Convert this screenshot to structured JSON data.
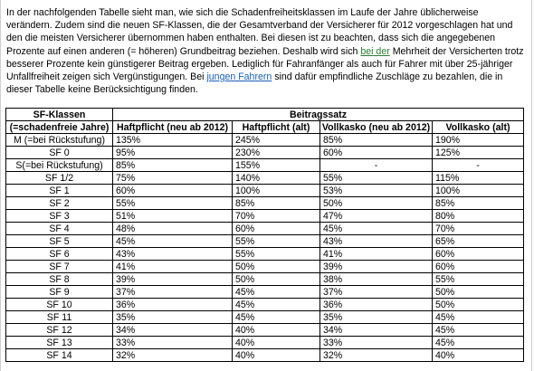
{
  "intro": {
    "part1": "In der nachfolgenden Tabelle sieht man, wie sich die Schadenfreiheitsklassen im Laufe der Jahre üblicherweise verändern. Zudem sind die neuen SF-Klassen, die der Gesamtverband der Versicherer für 2012 vorgeschlagen hat und den die meisten Versicherer übernommen haben enthalten. Bei diesen ist zu beachten, dass sich die angegebenen Prozente auf einen anderen (= höheren) Grundbeitrag beziehen. Deshalb wird sich ",
    "link_green": "bei der",
    "part2": " Mehrheit der Versicherten trotz besserer Prozente kein günstigerer Beitrag ergeben. Lediglich für Fahranfänger als auch für Fahrer mit über 25-jähriger Unfallfreiheit zeigen sich Vergünstigungen. Bei ",
    "link_blue": "jungen Fahrern",
    "part3": " sind dafür empfindliche Zuschläge zu bezahlen, die in dieser Tabelle keine Berücksichtigung finden."
  },
  "table": {
    "header_sf_line1": "SF-Klassen",
    "header_sf_line2": "(=schadenfreie Jahre)",
    "header_group": "Beitragssatz",
    "columns": [
      "Haftpflicht (neu ab 2012)",
      "Haftpflicht (alt)",
      "Vollkasko (neu ab 2012)",
      "Vollkasko (alt)"
    ],
    "rows": [
      {
        "cls": "M (=bei Rückstufung)",
        "v": [
          "135%",
          "245%",
          "85%",
          "190%"
        ]
      },
      {
        "cls": "SF 0",
        "v": [
          "95%",
          "230%",
          "60%",
          "125%"
        ]
      },
      {
        "cls": "S(=bei Rückstufung)",
        "v": [
          "85%",
          "155%",
          "-",
          "-"
        ]
      },
      {
        "cls": "SF 1/2",
        "v": [
          "75%",
          "140%",
          "55%",
          "115%"
        ]
      },
      {
        "cls": "SF 1",
        "v": [
          "60%",
          "100%",
          "53%",
          "100%"
        ]
      },
      {
        "cls": "SF 2",
        "v": [
          "55%",
          "85%",
          "50%",
          "85%"
        ]
      },
      {
        "cls": "SF 3",
        "v": [
          "51%",
          "70%",
          "47%",
          "80%"
        ]
      },
      {
        "cls": "SF 4",
        "v": [
          "48%",
          "60%",
          "45%",
          "70%"
        ]
      },
      {
        "cls": "SF 5",
        "v": [
          "45%",
          "55%",
          "43%",
          "65%"
        ]
      },
      {
        "cls": "SF 6",
        "v": [
          "43%",
          "55%",
          "41%",
          "60%"
        ]
      },
      {
        "cls": "SF 7",
        "v": [
          "41%",
          "50%",
          "39%",
          "60%"
        ]
      },
      {
        "cls": "SF 8",
        "v": [
          "39%",
          "50%",
          "38%",
          "55%"
        ]
      },
      {
        "cls": "SF 9",
        "v": [
          "37%",
          "45%",
          "37%",
          "50%"
        ]
      },
      {
        "cls": "SF 10",
        "v": [
          "36%",
          "45%",
          "36%",
          "50%"
        ]
      },
      {
        "cls": "SF 11",
        "v": [
          "35%",
          "45%",
          "35%",
          "45%"
        ]
      },
      {
        "cls": "SF 12",
        "v": [
          "34%",
          "40%",
          "34%",
          "45%"
        ]
      },
      {
        "cls": "SF 13",
        "v": [
          "33%",
          "40%",
          "33%",
          "45%"
        ]
      },
      {
        "cls": "SF 14",
        "v": [
          "32%",
          "40%",
          "32%",
          "40%"
        ]
      }
    ]
  },
  "colors": {
    "link_green": "#2e7d32",
    "link_blue": "#1a5fb4",
    "border": "#000000"
  }
}
